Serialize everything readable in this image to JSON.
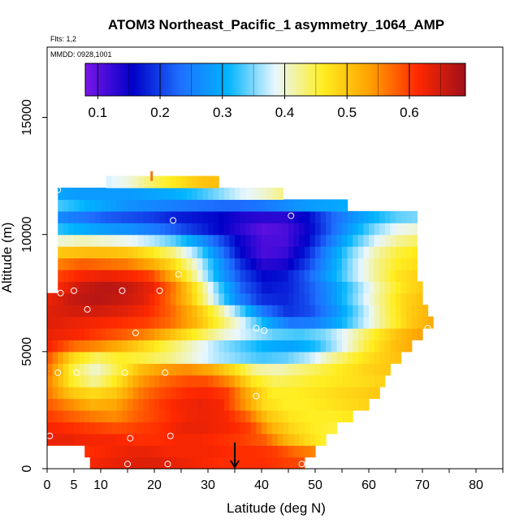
{
  "chart_data": {
    "type": "heatmap",
    "title": "ATOM3 Northeast_Pacific_1 asymmetry_1064_AMP",
    "notes": [
      "Flts: 1,2",
      "MMDD: 0928,1001"
    ],
    "xlabel": "Latitude (deg N)",
    "ylabel": "Altitude (m)",
    "xlim": [
      0,
      85
    ],
    "ylim": [
      0,
      18000
    ],
    "x_ticks": [
      0,
      5,
      10,
      20,
      30,
      40,
      50,
      60,
      70,
      80
    ],
    "y_ticks": [
      0,
      5000,
      10000,
      15000
    ],
    "colorbar": {
      "range": [
        0.08,
        0.69
      ],
      "ticks": [
        0.1,
        0.2,
        0.3,
        0.4,
        0.5,
        0.6
      ],
      "colors": [
        "#7b16e8",
        "#0000c8",
        "#1e6fff",
        "#00b4ff",
        "#e9f7ff",
        "#ffee20",
        "#ffa000",
        "#ff2800",
        "#a0101a"
      ]
    },
    "field_rows": [
      {
        "alt": 250,
        "x0": 8,
        "x1": 48,
        "values": [
          0.62,
          0.63,
          0.64,
          0.64,
          0.63,
          0.62,
          0.61,
          0.61,
          0.61,
          0.6,
          0.59
        ]
      },
      {
        "alt": 750,
        "x0": 7,
        "x1": 50,
        "values": [
          0.61,
          0.62,
          0.63,
          0.63,
          0.62,
          0.62,
          0.62,
          0.61,
          0.61,
          0.6,
          0.57,
          0.55
        ]
      },
      {
        "alt": 1250,
        "x0": 0,
        "x1": 52,
        "values": [
          0.63,
          0.63,
          0.62,
          0.62,
          0.61,
          0.61,
          0.62,
          0.62,
          0.61,
          0.6,
          0.58,
          0.52,
          0.48,
          0.45
        ]
      },
      {
        "alt": 1750,
        "x0": 0,
        "x1": 54,
        "values": [
          0.62,
          0.61,
          0.6,
          0.59,
          0.6,
          0.61,
          0.63,
          0.63,
          0.62,
          0.6,
          0.52,
          0.48,
          0.46,
          0.45
        ]
      },
      {
        "alt": 2250,
        "x0": 0,
        "x1": 57,
        "values": [
          0.6,
          0.58,
          0.56,
          0.55,
          0.58,
          0.6,
          0.62,
          0.63,
          0.62,
          0.58,
          0.5,
          0.47,
          0.46,
          0.46,
          0.47
        ]
      },
      {
        "alt": 2750,
        "x0": 0,
        "x1": 60,
        "values": [
          0.58,
          0.55,
          0.52,
          0.53,
          0.57,
          0.6,
          0.62,
          0.63,
          0.62,
          0.55,
          0.48,
          0.46,
          0.46,
          0.47,
          0.48,
          0.49
        ]
      },
      {
        "alt": 3250,
        "x0": 0,
        "x1": 62,
        "values": [
          0.56,
          0.5,
          0.48,
          0.5,
          0.56,
          0.59,
          0.61,
          0.62,
          0.6,
          0.52,
          0.46,
          0.46,
          0.47,
          0.48,
          0.49,
          0.5
        ]
      },
      {
        "alt": 3750,
        "x0": 0,
        "x1": 63,
        "values": [
          0.55,
          0.46,
          0.42,
          0.47,
          0.54,
          0.57,
          0.59,
          0.59,
          0.55,
          0.47,
          0.44,
          0.45,
          0.46,
          0.47,
          0.48,
          0.49
        ]
      },
      {
        "alt": 4250,
        "x0": 0,
        "x1": 64,
        "values": [
          0.56,
          0.45,
          0.4,
          0.45,
          0.51,
          0.54,
          0.55,
          0.53,
          0.48,
          0.42,
          0.41,
          0.43,
          0.45,
          0.47,
          0.49,
          0.5
        ]
      },
      {
        "alt": 4750,
        "x0": 0,
        "x1": 66,
        "values": [
          0.58,
          0.48,
          0.44,
          0.46,
          0.45,
          0.43,
          0.4,
          0.37,
          0.35,
          0.33,
          0.34,
          0.37,
          0.42,
          0.46,
          0.49,
          0.51
        ]
      },
      {
        "alt": 5250,
        "x0": 0,
        "x1": 68,
        "values": [
          0.62,
          0.57,
          0.55,
          0.52,
          0.48,
          0.44,
          0.4,
          0.36,
          0.33,
          0.3,
          0.29,
          0.32,
          0.38,
          0.45,
          0.5,
          0.53
        ]
      },
      {
        "alt": 5750,
        "x0": 0,
        "x1": 70,
        "values": [
          0.63,
          0.62,
          0.6,
          0.58,
          0.55,
          0.5,
          0.45,
          0.4,
          0.37,
          0.34,
          0.33,
          0.35,
          0.4,
          0.46,
          0.51,
          0.54
        ]
      },
      {
        "alt": 6250,
        "x0": 0,
        "x1": 72,
        "values": [
          0.64,
          0.63,
          0.62,
          0.61,
          0.6,
          0.57,
          0.52,
          0.45,
          0.38,
          0.3,
          0.24,
          0.25,
          0.3,
          0.37,
          0.44,
          0.5,
          0.53
        ]
      },
      {
        "alt": 6750,
        "x0": 0,
        "x1": 71,
        "values": [
          0.64,
          0.65,
          0.65,
          0.64,
          0.62,
          0.58,
          0.52,
          0.44,
          0.34,
          0.24,
          0.19,
          0.21,
          0.27,
          0.35,
          0.43,
          0.49,
          0.52
        ]
      },
      {
        "alt": 7250,
        "x0": 0,
        "x1": 70,
        "values": [
          0.63,
          0.66,
          0.67,
          0.66,
          0.64,
          0.58,
          0.5,
          0.38,
          0.26,
          0.19,
          0.18,
          0.21,
          0.27,
          0.35,
          0.42,
          0.48,
          0.51
        ]
      },
      {
        "alt": 7750,
        "x0": 2,
        "x1": 70,
        "values": [
          0.62,
          0.66,
          0.67,
          0.66,
          0.63,
          0.56,
          0.46,
          0.33,
          0.22,
          0.17,
          0.18,
          0.22,
          0.28,
          0.35,
          0.42,
          0.47,
          0.5
        ]
      },
      {
        "alt": 8250,
        "x0": 2,
        "x1": 69,
        "values": [
          0.6,
          0.62,
          0.63,
          0.62,
          0.6,
          0.52,
          0.42,
          0.3,
          0.21,
          0.16,
          0.17,
          0.22,
          0.29,
          0.36,
          0.42,
          0.47,
          0.49
        ]
      },
      {
        "alt": 8750,
        "x0": 2,
        "x1": 69,
        "values": [
          0.56,
          0.58,
          0.57,
          0.56,
          0.53,
          0.48,
          0.4,
          0.29,
          0.19,
          0.13,
          0.14,
          0.2,
          0.28,
          0.36,
          0.42,
          0.46,
          0.48
        ]
      },
      {
        "alt": 9250,
        "x0": 2,
        "x1": 69,
        "values": [
          0.5,
          0.51,
          0.51,
          0.5,
          0.47,
          0.43,
          0.36,
          0.26,
          0.16,
          0.11,
          0.12,
          0.18,
          0.27,
          0.35,
          0.41,
          0.45,
          0.47
        ]
      },
      {
        "alt": 9750,
        "x0": 2,
        "x1": 69,
        "values": [
          0.4,
          0.41,
          0.4,
          0.39,
          0.37,
          0.34,
          0.29,
          0.22,
          0.15,
          0.11,
          0.11,
          0.16,
          0.24,
          0.32,
          0.38,
          0.42,
          0.44
        ]
      },
      {
        "alt": 10250,
        "x0": 2,
        "x1": 69,
        "values": [
          0.32,
          0.3,
          0.28,
          0.27,
          0.25,
          0.22,
          0.19,
          0.16,
          0.13,
          0.1,
          0.11,
          0.15,
          0.22,
          0.29,
          0.35,
          0.39,
          0.4
        ]
      },
      {
        "alt": 10750,
        "x0": 2,
        "x1": 69,
        "values": [
          0.26,
          0.24,
          0.22,
          0.21,
          0.2,
          0.18,
          0.17,
          0.16,
          0.14,
          0.13,
          0.13,
          0.16,
          0.22,
          0.27,
          0.31,
          0.34,
          0.35
        ]
      },
      {
        "alt": 11250,
        "x0": 2,
        "x1": 56,
        "values": [
          0.33,
          0.31,
          0.29,
          0.27,
          0.26,
          0.25,
          0.24,
          0.23,
          0.23,
          0.24,
          0.26,
          0.28,
          0.29,
          0.3
        ]
      },
      {
        "alt": 11750,
        "x0": 2,
        "x1": 44,
        "values": [
          0.29,
          0.28,
          0.28,
          0.28,
          0.29,
          0.3,
          0.32,
          0.35,
          0.38,
          0.4,
          0.43
        ]
      },
      {
        "alt": 12250,
        "x0": 11,
        "x1": 32,
        "values": [
          0.38,
          0.4,
          0.44,
          0.47,
          0.5,
          0.51
        ]
      }
    ],
    "flight_points": [
      {
        "x": 0.5,
        "y": 1400
      },
      {
        "x": 2,
        "y": 4100
      },
      {
        "x": 2.5,
        "y": 7500
      },
      {
        "x": 5,
        "y": 7600
      },
      {
        "x": 5.5,
        "y": 4100
      },
      {
        "x": 7.5,
        "y": 6800
      },
      {
        "x": 14,
        "y": 7600
      },
      {
        "x": 14.5,
        "y": 4100
      },
      {
        "x": 15,
        "y": 200
      },
      {
        "x": 15.5,
        "y": 1300
      },
      {
        "x": 16.5,
        "y": 5800
      },
      {
        "x": 21,
        "y": 7600
      },
      {
        "x": 22,
        "y": 4100
      },
      {
        "x": 22.5,
        "y": 200
      },
      {
        "x": 23,
        "y": 1400
      },
      {
        "x": 23.5,
        "y": 10600
      },
      {
        "x": 24.5,
        "y": 8300
      },
      {
        "x": 39,
        "y": 6000
      },
      {
        "x": 39,
        "y": 3100
      },
      {
        "x": 40.5,
        "y": 5900
      },
      {
        "x": 45.5,
        "y": 10800
      },
      {
        "x": 47.5,
        "y": 200
      },
      {
        "x": 71,
        "y": 6000
      },
      {
        "x": 2,
        "y": 11900
      }
    ],
    "marker_arrow": {
      "x": 35,
      "y_from": 700,
      "y_to": 0
    },
    "top_tick_marker": {
      "x": 19.5,
      "y": 12700
    }
  }
}
